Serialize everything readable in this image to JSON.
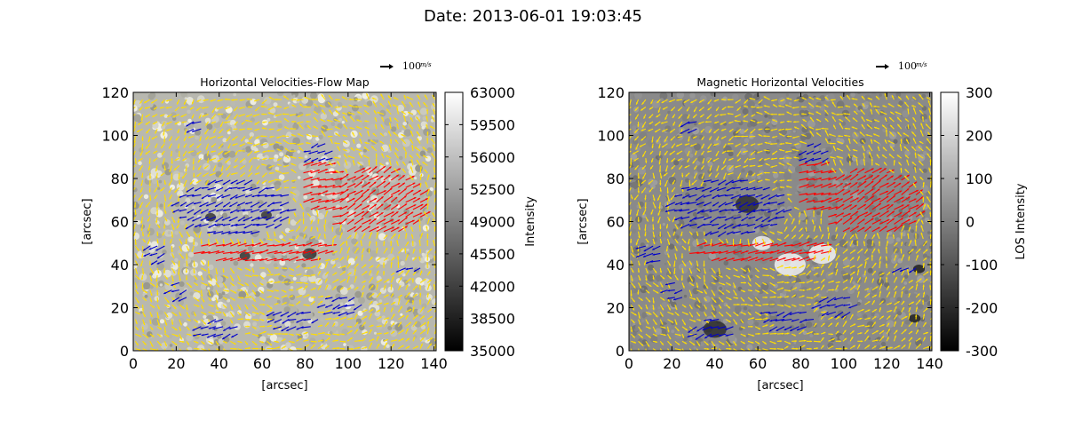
{
  "figure_title": "Date: 2013-06-01 19:03:45",
  "colors": {
    "yellow_arrow": "#ffdd00",
    "blue_arrow": "#0000cc",
    "red_arrow": "#ff0000",
    "axis": "#000000"
  },
  "chart_data": [
    {
      "type": "heatmap",
      "subtype": "quiver-over-image",
      "title": "Horizontal Velocities-Flow Map",
      "xlabel": "[arcsec]",
      "ylabel": "[arcsec]",
      "xlim": [
        0,
        141
      ],
      "ylim": [
        0,
        120
      ],
      "xticks": [
        "0",
        "20",
        "40",
        "60",
        "80",
        "100",
        "120",
        "140"
      ],
      "yticks": [
        "0",
        "20",
        "40",
        "60",
        "80",
        "100",
        "120"
      ],
      "xtick_values": [
        0,
        20,
        40,
        60,
        80,
        100,
        120,
        140
      ],
      "ytick_values": [
        0,
        20,
        40,
        60,
        80,
        100,
        120
      ],
      "colorbar": {
        "label": "Intensity",
        "range": [
          35000,
          63000
        ],
        "ticks": [
          "63000",
          "59500",
          "56000",
          "52500",
          "49000",
          "45500",
          "42000",
          "38500",
          "35000"
        ],
        "colormap": "gray"
      },
      "background": "granulation",
      "quiver_key": "100",
      "quiver_key_unit": "m/s"
    },
    {
      "type": "heatmap",
      "subtype": "quiver-over-image",
      "title": "Magnetic Horizontal Velocities",
      "xlabel": "[arcsec]",
      "ylabel": "[arcsec]",
      "xlim": [
        0,
        141
      ],
      "ylim": [
        0,
        120
      ],
      "xticks": [
        "0",
        "20",
        "40",
        "60",
        "80",
        "100",
        "120",
        "140"
      ],
      "yticks": [
        "0",
        "20",
        "40",
        "60",
        "80",
        "100",
        "120"
      ],
      "xtick_values": [
        0,
        20,
        40,
        60,
        80,
        100,
        120,
        140
      ],
      "ytick_values": [
        0,
        20,
        40,
        60,
        80,
        100,
        120
      ],
      "colorbar": {
        "label": "LOS Intensity",
        "range": [
          -300,
          300
        ],
        "ticks": [
          "300",
          "200",
          "100",
          "0",
          "-100",
          "-200",
          "-300"
        ],
        "colormap": "gray"
      },
      "background": "magnetogram",
      "quiver_key": "100",
      "quiver_key_unit": "m/s"
    }
  ]
}
